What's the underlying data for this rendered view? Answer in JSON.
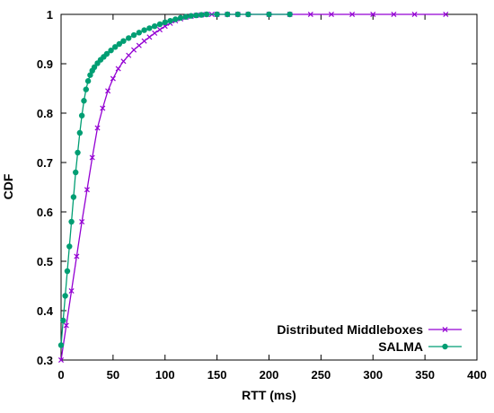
{
  "chart_data": {
    "type": "line",
    "xlabel": "RTT (ms)",
    "ylabel": "CDF",
    "xlim": [
      0,
      400
    ],
    "ylim": [
      0.3,
      1
    ],
    "x_ticks": [
      0,
      50,
      100,
      150,
      200,
      250,
      300,
      350,
      400
    ],
    "y_ticks": [
      0.3,
      0.4,
      0.5,
      0.6,
      0.7,
      0.8,
      0.9,
      1
    ],
    "grid": false,
    "legend_position": "bottom-right",
    "series": [
      {
        "name": "Distributed Middleboxes",
        "color": "#9400d3",
        "marker": "cross",
        "x": [
          0,
          5,
          10,
          15,
          20,
          25,
          30,
          35,
          40,
          45,
          50,
          55,
          60,
          65,
          70,
          75,
          80,
          85,
          90,
          95,
          100,
          105,
          110,
          115,
          120,
          125,
          130,
          135,
          140,
          145,
          150,
          160,
          170,
          180,
          200,
          220,
          240,
          260,
          280,
          300,
          320,
          340,
          370
        ],
        "y": [
          0.3,
          0.37,
          0.44,
          0.51,
          0.58,
          0.645,
          0.71,
          0.77,
          0.81,
          0.845,
          0.87,
          0.89,
          0.905,
          0.917,
          0.928,
          0.937,
          0.946,
          0.954,
          0.962,
          0.969,
          0.976,
          0.982,
          0.987,
          0.991,
          0.994,
          0.996,
          0.998,
          0.999,
          1,
          1,
          1,
          1,
          1,
          1,
          1,
          1,
          1,
          1,
          1,
          1,
          1,
          1,
          1
        ]
      },
      {
        "name": "SALMA",
        "color": "#009e73",
        "marker": "circle",
        "x": [
          0,
          2,
          4,
          6,
          8,
          10,
          12,
          14,
          16,
          18,
          20,
          22,
          24,
          26,
          28,
          30,
          32,
          35,
          38,
          41,
          44,
          48,
          52,
          56,
          60,
          65,
          70,
          75,
          80,
          85,
          90,
          95,
          100,
          105,
          110,
          115,
          120,
          125,
          130,
          135,
          140,
          150,
          160,
          170,
          180,
          200,
          220
        ],
        "y": [
          0.33,
          0.38,
          0.43,
          0.48,
          0.53,
          0.58,
          0.63,
          0.68,
          0.72,
          0.76,
          0.795,
          0.825,
          0.848,
          0.865,
          0.877,
          0.886,
          0.893,
          0.901,
          0.908,
          0.914,
          0.92,
          0.927,
          0.934,
          0.94,
          0.946,
          0.952,
          0.958,
          0.963,
          0.968,
          0.972,
          0.976,
          0.98,
          0.984,
          0.987,
          0.99,
          0.993,
          0.995,
          0.997,
          0.998,
          0.999,
          1,
          1,
          1,
          1,
          1,
          1,
          1
        ]
      }
    ]
  }
}
